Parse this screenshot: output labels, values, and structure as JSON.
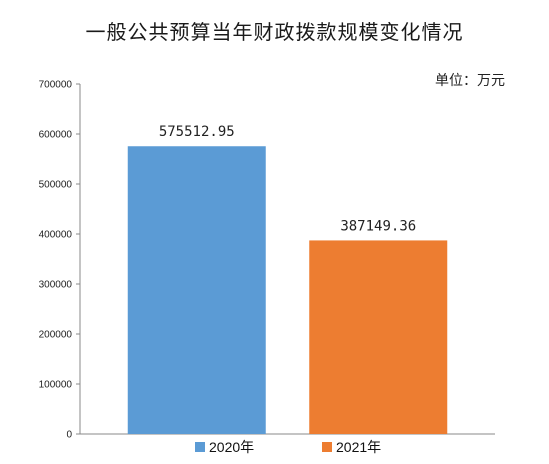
{
  "chart_data": {
    "type": "bar",
    "title": "一般公共预算当年财政拨款规模变化情况",
    "unit_label": "单位：万元",
    "categories": [
      "2020年",
      "2021年"
    ],
    "values": [
      575512.95,
      387149.36
    ],
    "value_labels": [
      "575512.95",
      "387149.36"
    ],
    "colors": [
      "#5b9bd5",
      "#ed7d31"
    ],
    "ylim": [
      0,
      700000
    ],
    "yticks": [
      0,
      100000,
      200000,
      300000,
      400000,
      500000,
      600000,
      700000
    ],
    "ytick_labels": [
      "0",
      "100000",
      "200000",
      "300000",
      "400000",
      "500000",
      "600000",
      "700000"
    ],
    "legend": [
      "2020年",
      "2021年"
    ],
    "legend_position": "bottom",
    "grid": false
  }
}
